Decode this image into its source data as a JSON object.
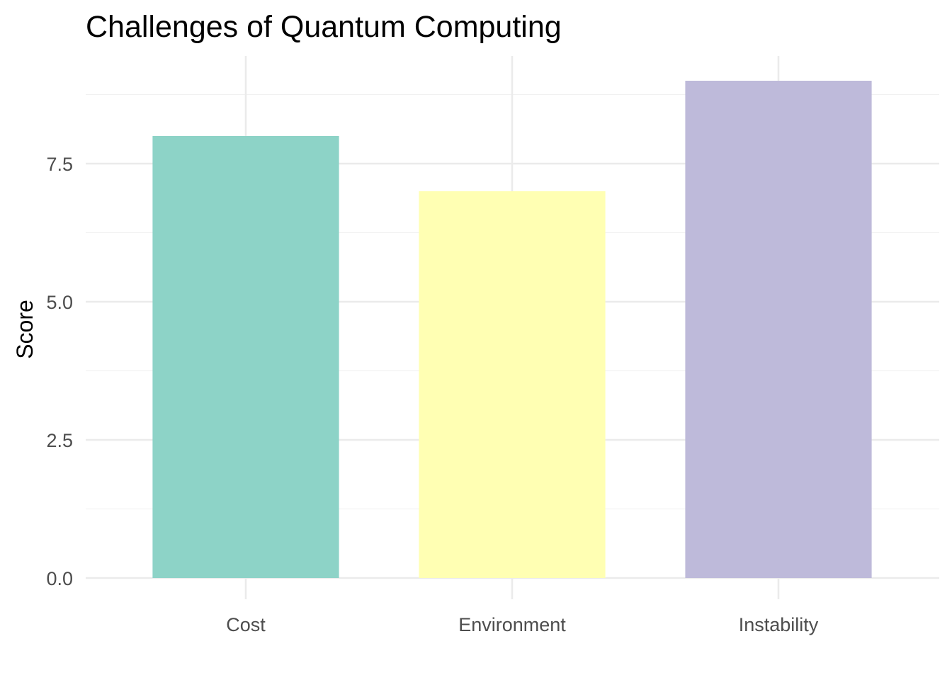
{
  "chart_data": {
    "type": "bar",
    "title": "Challenges of Quantum Computing",
    "xlabel": "",
    "ylabel": "Score",
    "categories": [
      "Cost",
      "Environment",
      "Instability"
    ],
    "values": [
      8,
      7,
      9
    ],
    "colors": [
      "#8dd3c7",
      "#ffffb3",
      "#bebada"
    ],
    "ylim": [
      0,
      9.45
    ],
    "y_ticks": [
      0,
      2.5,
      5,
      7.5
    ],
    "y_tick_labels": [
      "0.0",
      "2.5",
      "5.0",
      "7.5"
    ],
    "grid": true,
    "legend": "none"
  }
}
